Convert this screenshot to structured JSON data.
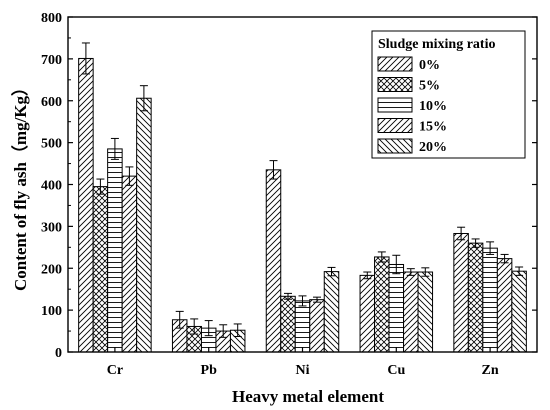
{
  "chart_data": {
    "type": "bar",
    "xlabel": "Heavy metal element",
    "ylabel": "Content of fly ash（mg/Kg）",
    "ylim": [
      0,
      800
    ],
    "yticks": [
      0,
      100,
      200,
      300,
      400,
      500,
      600,
      700,
      800
    ],
    "grid": false,
    "categories": [
      "Cr",
      "Pb",
      "Ni",
      "Cu",
      "Zn"
    ],
    "legend": {
      "title": "Sludge mixing ratio",
      "placement": "top-right"
    },
    "series": [
      {
        "name": "0%",
        "pattern": "hatch-forward",
        "values": [
          701,
          77,
          435,
          183,
          283
        ],
        "errors": [
          37,
          20,
          22,
          8,
          15
        ]
      },
      {
        "name": "5%",
        "pattern": "crosshatch",
        "values": [
          395,
          61,
          133,
          227,
          260
        ],
        "errors": [
          18,
          18,
          7,
          12,
          10
        ]
      },
      {
        "name": "10%",
        "pattern": "horizontal",
        "values": [
          485,
          57,
          122,
          209,
          248
        ],
        "errors": [
          25,
          18,
          12,
          22,
          15
        ]
      },
      {
        "name": "15%",
        "pattern": "hatch-forward",
        "values": [
          420,
          50,
          125,
          191,
          223
        ],
        "errors": [
          22,
          15,
          6,
          8,
          10
        ]
      },
      {
        "name": "20%",
        "pattern": "hatch-back",
        "values": [
          606,
          52,
          192,
          191,
          193
        ],
        "errors": [
          30,
          15,
          10,
          10,
          10
        ]
      }
    ]
  }
}
